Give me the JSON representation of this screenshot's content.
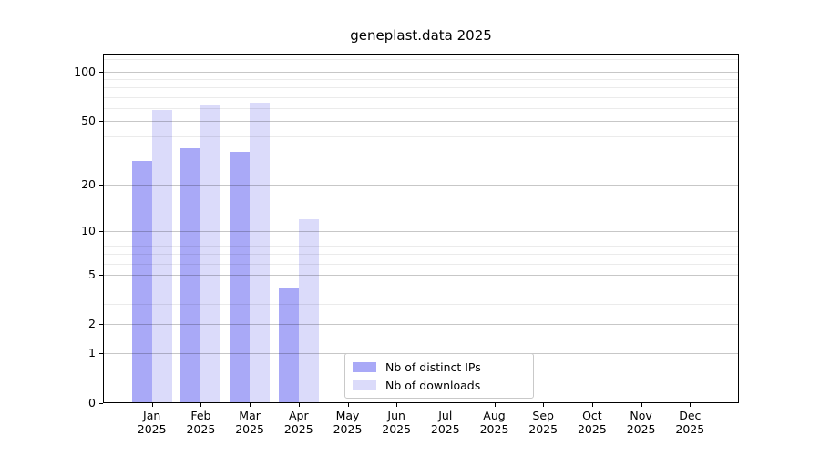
{
  "title": "geneplast.data 2025",
  "chart_data": {
    "type": "bar",
    "title": "geneplast.data 2025",
    "categories": [
      "Jan",
      "Feb",
      "Mar",
      "Apr",
      "May",
      "Jun",
      "Jul",
      "Aug",
      "Sep",
      "Oct",
      "Nov",
      "Dec"
    ],
    "x_sublabel": "2025",
    "series": [
      {
        "name": "Nb of distinct IPs",
        "color": "#a9a9f7",
        "values": [
          28,
          34,
          32,
          4,
          null,
          null,
          null,
          null,
          null,
          null,
          null,
          null
        ]
      },
      {
        "name": "Nb of downloads",
        "color": "#dbdbfa",
        "values": [
          58,
          63,
          65,
          12,
          null,
          null,
          null,
          null,
          null,
          null,
          null,
          null
        ]
      }
    ],
    "yscale": "log1p",
    "yticks": [
      0,
      1,
      2,
      5,
      10,
      20,
      50,
      100
    ],
    "yticks_minor": [
      3,
      4,
      6,
      7,
      8,
      9,
      30,
      40,
      60,
      70,
      80,
      90,
      110,
      120
    ],
    "ylim": [
      0,
      129
    ],
    "grid": "horizontal",
    "legend_position": "inside-bottom",
    "colors": {
      "background": "#ffffff",
      "axis": "#000000",
      "major_grid": "#c6c6c6",
      "minor_grid": "#ebebeb"
    }
  }
}
